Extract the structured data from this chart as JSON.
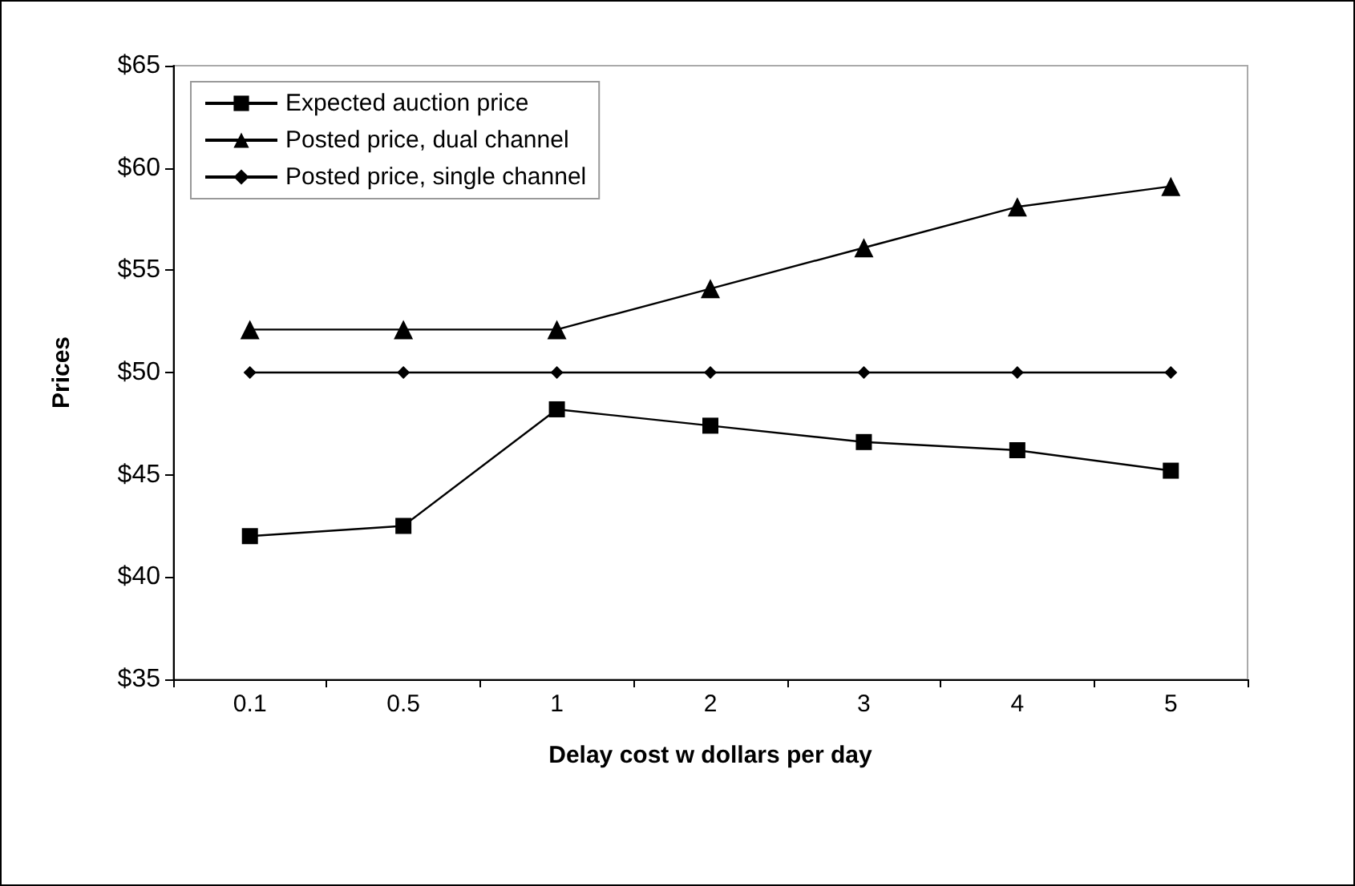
{
  "chart_data": {
    "type": "line",
    "xlabel": "Delay cost w dollars per day",
    "ylabel": "Prices",
    "categories": [
      "0.1",
      "0.5",
      "1",
      "2",
      "3",
      "4",
      "5"
    ],
    "series": [
      {
        "name": "Expected auction price",
        "color": "#000000",
        "marker": "square",
        "values": [
          42.0,
          42.5,
          48.2,
          47.4,
          46.6,
          46.2,
          45.2
        ]
      },
      {
        "name": "Posted price, dual channel",
        "color": "#000000",
        "marker": "triangle",
        "values": [
          52.1,
          52.1,
          52.1,
          54.1,
          56.1,
          58.1,
          59.1
        ]
      },
      {
        "name": "Posted price, single channel",
        "color": "#000000",
        "marker": "diamond",
        "values": [
          50,
          50,
          50,
          50,
          50,
          50,
          50
        ]
      }
    ],
    "ylim": [
      35,
      65
    ],
    "yticks": [
      {
        "value": 35,
        "label": "$35"
      },
      {
        "value": 40,
        "label": "$40"
      },
      {
        "value": 45,
        "label": "$45"
      },
      {
        "value": 50,
        "label": "$50"
      },
      {
        "value": 55,
        "label": "$55"
      },
      {
        "value": 60,
        "label": "$60"
      },
      {
        "value": 65,
        "label": "$65"
      }
    ],
    "grid": false,
    "legend": "top left",
    "line_style": "solid"
  }
}
